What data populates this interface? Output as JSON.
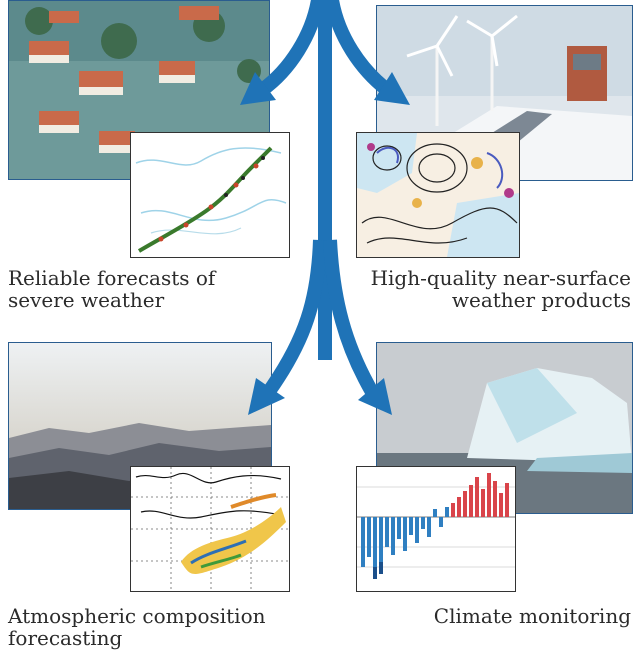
{
  "panels": [
    {
      "caption_lines": [
        "Reliable forecasts of",
        "severe weather"
      ]
    },
    {
      "caption_lines": [
        "High-quality near-surface",
        "weather products"
      ]
    },
    {
      "caption_lines": [
        "Atmospheric composition",
        "forecasting"
      ]
    },
    {
      "caption_lines": [
        "Climate monitoring"
      ]
    }
  ],
  "colors": {
    "arrow": "#1f73b7",
    "photo_border": "#2a5d8f",
    "caption_text": "#2b2b2b"
  },
  "icons": {
    "p1_photo": "flooded-houses-photo",
    "p1_inset": "storm-track-map",
    "p2_photo": "wind-turbines-snowy-road-photo",
    "p2_inset": "weather-isobar-map",
    "p3_photo": "hazy-mountains-photo",
    "p3_inset": "dust-plume-map",
    "p4_photo": "iceberg-photo",
    "p4_inset": "temperature-anomaly-bar-chart"
  }
}
